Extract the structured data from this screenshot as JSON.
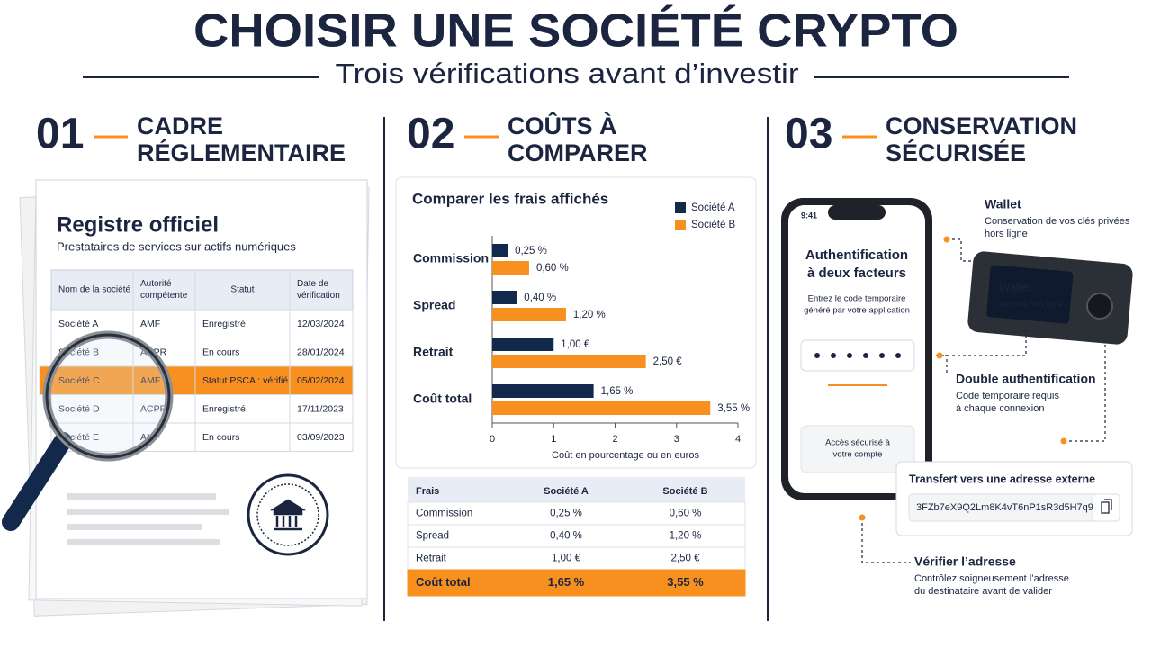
{
  "header": {
    "title": "CHOISIR UNE SOCIÉTÉ CRYPTO",
    "subtitle": "Trois vérifications avant d’investir"
  },
  "sections": [
    {
      "number": "01",
      "title_lines": [
        "CADRE",
        "RÉGLEMENTAIRE"
      ]
    },
    {
      "number": "02",
      "title_lines": [
        "COÛTS À",
        "COMPARER"
      ]
    },
    {
      "number": "03",
      "title_lines": [
        "CONSERVATION",
        "SÉCURISÉE"
      ]
    }
  ],
  "registry": {
    "title": "Registre officiel",
    "subtitle": "Prestataires de services sur actifs numériques",
    "columns": [
      [
        "Nom de la société"
      ],
      [
        "Autorité",
        "compétente"
      ],
      [
        "Statut"
      ],
      [
        "Date de",
        "vérification"
      ]
    ],
    "rows": [
      [
        "Société A",
        "AMF",
        "Enregistré",
        "12/03/2024"
      ],
      [
        "Société B",
        "ACPR",
        "En cours",
        "28/01/2024"
      ],
      [
        "Société C",
        "AMF",
        "Statut PSCA : vérifié",
        "05/02/2024"
      ],
      [
        "Société D",
        "ACPR",
        "Enregistré",
        "17/11/2023"
      ],
      [
        "Société E",
        "AMF",
        "En cours",
        "03/09/2023"
      ]
    ]
  },
  "chart_data": {
    "type": "bar",
    "orientation": "horizontal",
    "title": "Comparer les frais affichés",
    "categories": [
      "Commission",
      "Spread",
      "Retrait",
      "Coût total"
    ],
    "series": [
      {
        "name": "Société A",
        "color": "#13294b",
        "values": [
          0.25,
          0.4,
          1,
          1.65
        ],
        "value_labels": [
          "0,25 %",
          "0,40 %",
          "1,00 €",
          "1,65 %"
        ]
      },
      {
        "name": "Société B",
        "color": "#f7901e",
        "values": [
          0.6,
          1.2,
          2.5,
          3.55
        ],
        "value_labels": [
          "0,60 %",
          "1,20 %",
          "2,50 €",
          "3,55 %"
        ]
      }
    ],
    "xlim": [
      0,
      4
    ],
    "xticks": [
      0,
      1,
      2,
      3,
      4
    ],
    "xlabel": "Coût en pourcentage ou en euros"
  },
  "fees_table": {
    "columns": [
      "Frais",
      "Société A",
      "Société B"
    ],
    "rows": [
      [
        "Commission",
        "0,25 %",
        "0,60 %"
      ],
      [
        "Spread",
        "0,40 %",
        "1,20 %"
      ],
      [
        "Retrait",
        "1,00 €",
        "2,50 €"
      ],
      [
        "Coût total",
        "1,65 %",
        "3,55 %"
      ]
    ]
  },
  "security": {
    "phone": {
      "time": "9:41",
      "title_lines": [
        "Authentification",
        "à deux facteurs"
      ],
      "text_lines": [
        "Entrez le code temporaire",
        "généré par votre application"
      ],
      "access_lines": [
        "Accès sécurisé à",
        "votre compte"
      ]
    },
    "wallet": {
      "title": "Wallet",
      "text_lines": [
        "Conservation de vos clés privées",
        "hors ligne"
      ],
      "device_title": "Wallet",
      "device_subtitle": "Appareil hors ligne"
    },
    "double_auth": {
      "title": "Double authentification",
      "text_lines": [
        "Code temporaire requis",
        "à chaque connexion"
      ]
    },
    "transfer": {
      "title": "Transfert vers une adresse externe",
      "address": "3FZb7eX9Q2Lm8K4vT6nP1sR3d5H7q9"
    },
    "verify": {
      "title": "Vérifier l’adresse",
      "text_lines": [
        "Contrôlez soigneusement l’adresse",
        "du destinataire avant de valider"
      ]
    }
  }
}
